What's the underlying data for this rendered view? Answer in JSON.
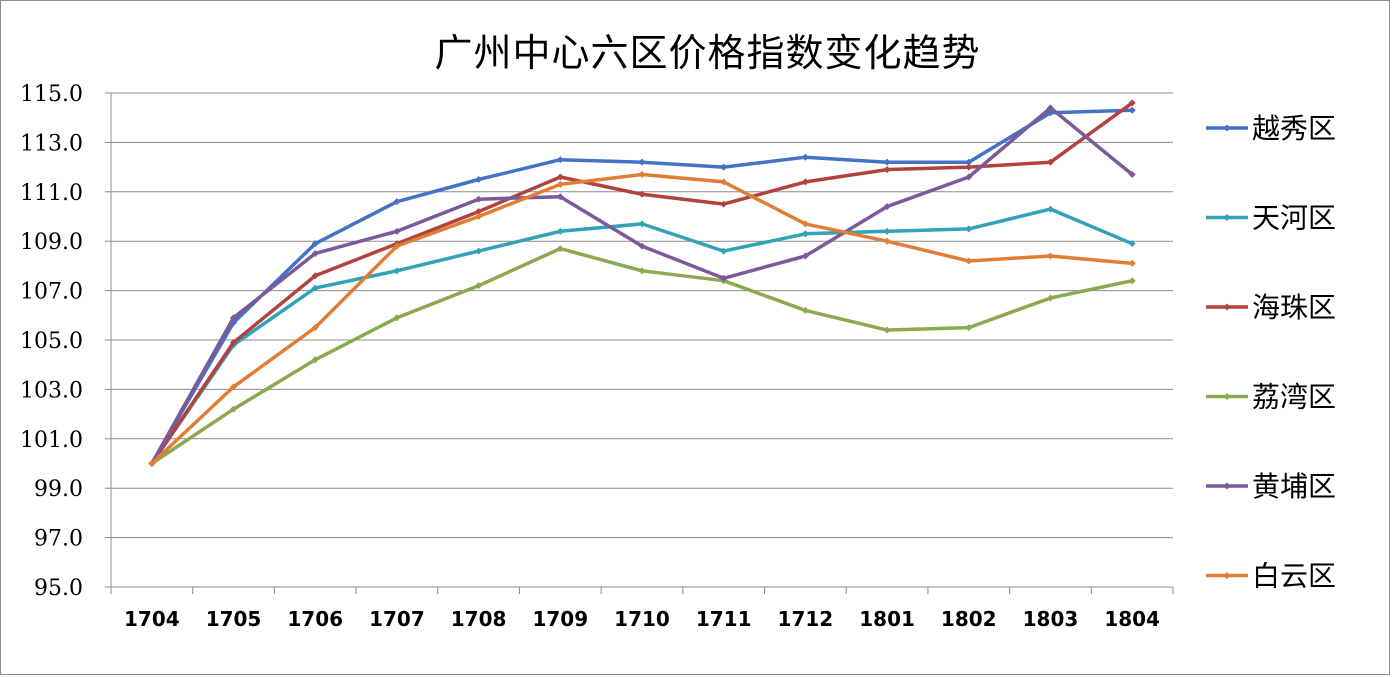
{
  "chart_data": {
    "type": "line",
    "title": "广州中心六区价格指数变化趋势",
    "xlabel": "",
    "ylabel": "",
    "ylim": [
      95,
      115
    ],
    "y_ticks": [
      "115.0",
      "113.0",
      "111.0",
      "109.0",
      "107.0",
      "105.0",
      "103.0",
      "101.0",
      "99.0",
      "97.0",
      "95.0"
    ],
    "categories": [
      "1704",
      "1705",
      "1706",
      "1707",
      "1708",
      "1709",
      "1710",
      "1711",
      "1712",
      "1801",
      "1802",
      "1803",
      "1804"
    ],
    "grid": "horizontal",
    "legend_position": "right",
    "series": [
      {
        "name": "越秀区",
        "color": "#4472C4",
        "values": [
          100.0,
          105.7,
          108.9,
          110.6,
          111.5,
          112.3,
          112.2,
          112.0,
          112.4,
          112.2,
          112.2,
          114.2,
          114.3
        ]
      },
      {
        "name": "天河区",
        "color": "#31A2B8",
        "values": [
          100.0,
          104.8,
          107.1,
          107.8,
          108.6,
          109.4,
          109.7,
          108.6,
          109.3,
          109.4,
          109.5,
          110.3,
          108.9
        ]
      },
      {
        "name": "海珠区",
        "color": "#B0433F",
        "values": [
          100.0,
          104.9,
          107.6,
          108.9,
          110.2,
          111.6,
          110.9,
          110.5,
          111.4,
          111.9,
          112.0,
          112.2,
          114.6
        ]
      },
      {
        "name": "荔湾区",
        "color": "#8BA94E",
        "values": [
          100.0,
          102.2,
          104.2,
          105.9,
          107.2,
          108.7,
          107.8,
          107.4,
          106.2,
          105.4,
          105.5,
          106.7,
          107.4
        ]
      },
      {
        "name": "黄埔区",
        "color": "#7A5A9A",
        "values": [
          100.0,
          105.9,
          108.5,
          109.4,
          110.7,
          110.8,
          108.8,
          107.5,
          108.4,
          110.4,
          111.6,
          114.4,
          111.7
        ]
      },
      {
        "name": "白云区",
        "color": "#E07E36",
        "values": [
          100.0,
          103.1,
          105.5,
          108.8,
          110.0,
          111.3,
          111.7,
          111.4,
          109.7,
          109.0,
          108.2,
          108.4,
          108.1
        ]
      }
    ]
  }
}
